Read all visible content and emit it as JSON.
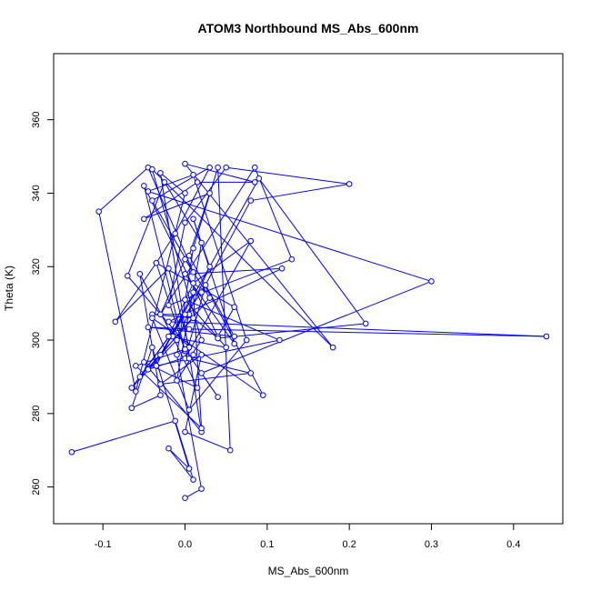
{
  "chart_data": {
    "type": "line",
    "title": "ATOM3 Northbound MS_Abs_600nm",
    "xlabel": "MS_Abs_600nm",
    "ylabel": "Theta (K)",
    "xlim": [
      -0.16,
      0.46
    ],
    "ylim": [
      250,
      378
    ],
    "x_ticks": [
      -0.1,
      0.0,
      0.1,
      0.2,
      0.3,
      0.4
    ],
    "x_tick_labels": [
      "-0.1",
      "0.0",
      "0.1",
      "0.2",
      "0.3",
      "0.4"
    ],
    "y_ticks": [
      260,
      280,
      300,
      320,
      340,
      360
    ],
    "y_tick_labels": [
      "260",
      "280",
      "300",
      "320",
      "340",
      "360"
    ],
    "grid": false,
    "markers": "open-circle",
    "series_color": "#0000ff",
    "series": [
      {
        "x": [
          -0.138,
          -0.012,
          0.01,
          -0.02,
          0.005,
          -0.04,
          -0.065,
          -0.03,
          -0.055,
          -0.015,
          0.015,
          -0.05,
          0.02,
          -0.03,
          0.0,
          -0.06,
          -0.105,
          -0.045,
          0.01,
          -0.04,
          0.03,
          -0.012,
          -0.035,
          0.06,
          0.04,
          -0.05,
          0.0,
          -0.035,
          -0.085,
          -0.02,
          0.005,
          -0.07,
          -0.025,
          0.02,
          -0.01,
          0.01,
          -0.045,
          0.03,
          0.0,
          -0.03,
          0.085,
          0.13,
          -0.02,
          0.0,
          0.05,
          0.2,
          0.08,
          0.02,
          -0.055,
          0.01,
          -0.04,
          0.005,
          0.04,
          0.22,
          0.09,
          -0.03,
          0.0,
          -0.065,
          -0.01,
          0.03,
          0.01,
          0.06,
          0.0,
          0.118,
          -0.02,
          0.44,
          0.005,
          -0.045,
          0.06,
          0.025,
          0.0,
          0.08,
          0.01,
          -0.02,
          0.05,
          0.0,
          0.115,
          -0.035,
          0.01,
          0.02,
          -0.06,
          0.0,
          0.04,
          0.02,
          0.3,
          -0.045,
          0.01,
          0.075,
          0.005,
          -0.04,
          0.095,
          0.005,
          0.03,
          -0.05,
          0.015,
          0.085,
          0.0,
          0.18,
          -0.04,
          0.02,
          0.005,
          0.08,
          -0.03,
          0.02,
          0.0,
          0.055,
          0.04,
          0.01,
          -0.01,
          0.02,
          0.0
        ],
        "y": [
          269.5,
          278.0,
          262.0,
          270.5,
          265.0,
          298.0,
          281.5,
          285.0,
          318.0,
          301.0,
          287.0,
          294.0,
          275.0,
          345.5,
          340.0,
          286.0,
          335.0,
          347.0,
          318.5,
          338.0,
          347.0,
          329.0,
          321.0,
          309.0,
          301.0,
          342.0,
          297.0,
          321.0,
          305.0,
          319.5,
          298.0,
          317.5,
          343.0,
          326.5,
          289.0,
          296.0,
          292.0,
          311.5,
          322.0,
          307.0,
          347.0,
          322.0,
          309.5,
          332.0,
          347.0,
          342.5,
          338.0,
          313.0,
          290.0,
          306.0,
          307.0,
          307.0,
          300.5,
          304.5,
          344.0,
          296.0,
          307.0,
          287.0,
          300.0,
          320.0,
          333.0,
          299.0,
          318.0,
          319.5,
          305.0,
          301.0,
          303.0,
          303.5,
          301.0,
          315.0,
          295.0,
          327.0,
          315.5,
          301.0,
          298.0,
          311.0,
          300.0,
          293.0,
          313.0,
          276.0,
          293.0,
          297.5,
          284.5,
          291.0,
          316.0,
          340.5,
          345.0,
          300.0,
          281.0,
          306.0,
          285.0,
          323.0,
          340.0,
          333.0,
          343.0,
          343.0,
          348.0,
          298.0,
          346.5,
          300.0,
          295.0,
          291.0,
          288.0,
          296.0,
          275.0,
          270.0,
          347.0,
          325.0,
          296.0,
          259.5,
          257.0
        ]
      }
    ]
  }
}
